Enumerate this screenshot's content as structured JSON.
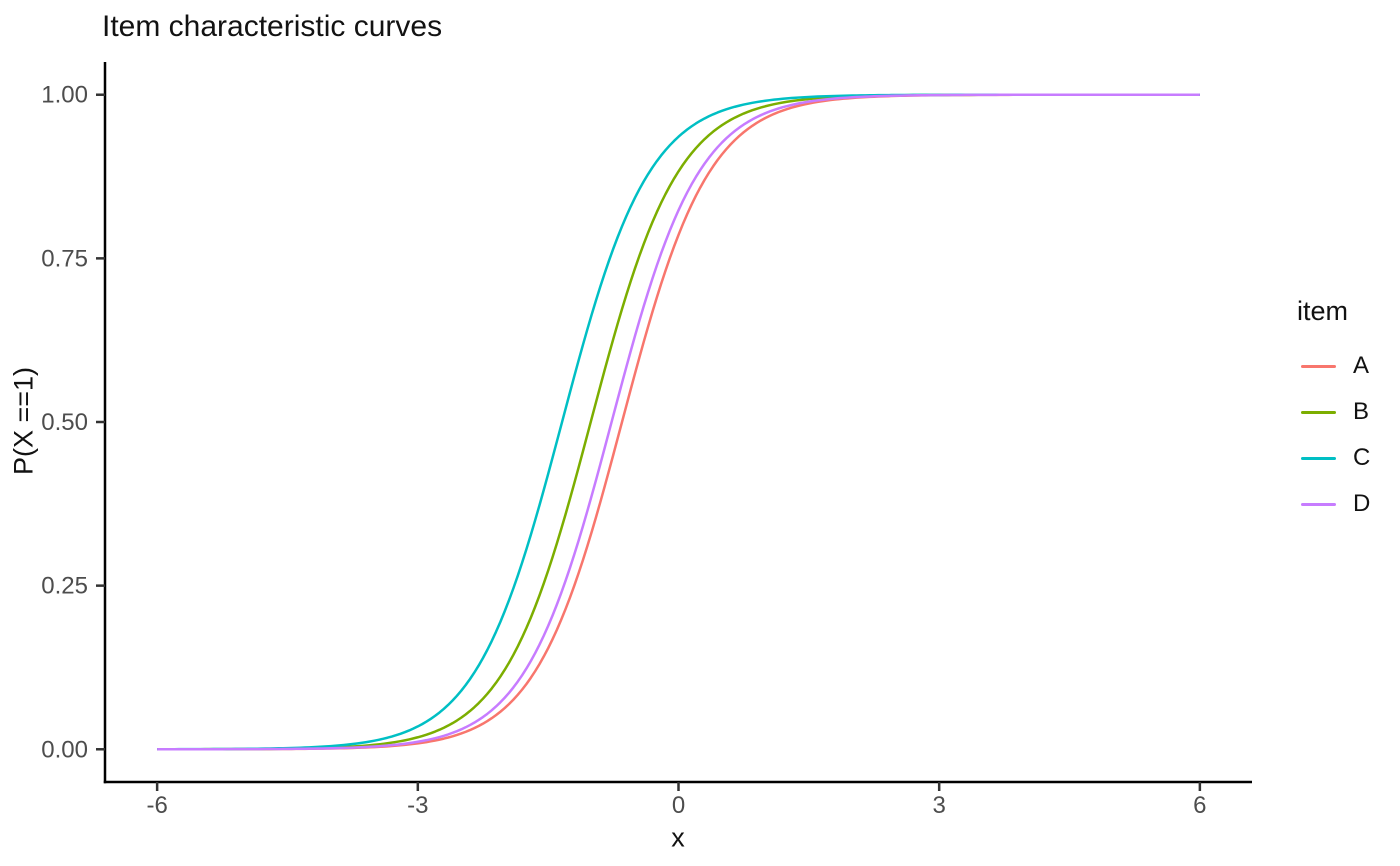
{
  "title": "Item characteristic curves",
  "legend": {
    "title": "item",
    "items": [
      {
        "label": "A",
        "color": "#F8766D"
      },
      {
        "label": "B",
        "color": "#7CAE00"
      },
      {
        "label": "C",
        "color": "#00BFC4"
      },
      {
        "label": "D",
        "color": "#C77CFF"
      }
    ]
  },
  "colors": {
    "axis_line": "#000000",
    "tick_mark": "#333333",
    "tick_label": "#4d4d4d",
    "background": "#ffffff"
  },
  "chart_data": {
    "type": "line",
    "title": "Item characteristic curves",
    "xlabel": "x",
    "ylabel": "P(X ==1)",
    "x_range": [
      -6,
      6
    ],
    "xlim": [
      -6.6,
      6.6
    ],
    "ylim": [
      -0.05,
      1.05
    ],
    "x_ticks": [
      -6,
      -3,
      0,
      3,
      6
    ],
    "x_tick_labels": [
      "-6",
      "-3",
      "0",
      "3",
      "6"
    ],
    "y_ticks": [
      0,
      0.25,
      0.5,
      0.75,
      1
    ],
    "y_tick_labels": [
      "0.00",
      "0.25",
      "0.50",
      "0.75",
      "1.00"
    ],
    "grid": false,
    "legend_position": "right",
    "model": "2PL logistic item characteristic curve: P(X==1) = 1 / (1 + exp(-a*(x-b)))",
    "series": [
      {
        "name": "A",
        "color": "#F8766D",
        "a": 2.0,
        "b": -0.65,
        "x_samples": [
          -6,
          -5,
          -4,
          -3,
          -2,
          -1,
          0,
          1,
          2,
          3,
          4,
          5,
          6
        ],
        "p_samples": [
          0.0,
          0.0002,
          0.0012,
          0.009,
          0.063,
          0.3318,
          0.7858,
          0.9644,
          0.995,
          0.9993,
          0.9999,
          1.0,
          1.0
        ]
      },
      {
        "name": "B",
        "color": "#7CAE00",
        "a": 2.0,
        "b": -1.01,
        "x_samples": [
          -6,
          -5,
          -4,
          -3,
          -2,
          -1,
          0,
          1,
          2,
          3,
          4,
          5,
          6
        ],
        "p_samples": [
          0.0,
          0.0003,
          0.0025,
          0.0183,
          0.1213,
          0.505,
          0.8829,
          0.9824,
          0.9976,
          0.9997,
          1.0,
          1.0,
          1.0
        ]
      },
      {
        "name": "C",
        "color": "#00BFC4",
        "a": 2.0,
        "b": -1.34,
        "x_samples": [
          -6,
          -5,
          -4,
          -3,
          -2,
          -1,
          0,
          1,
          2,
          3,
          4,
          5,
          6
        ],
        "p_samples": [
          0.0001,
          0.0007,
          0.0049,
          0.0349,
          0.2108,
          0.6637,
          0.9359,
          0.9908,
          0.9987,
          0.9998,
          1.0,
          1.0,
          1.0
        ]
      },
      {
        "name": "D",
        "color": "#C77CFF",
        "a": 2.0,
        "b": -0.77,
        "x_samples": [
          -6,
          -5,
          -4,
          -3,
          -2,
          -1,
          0,
          1,
          2,
          3,
          4,
          5,
          6
        ],
        "p_samples": [
          0.0,
          0.0002,
          0.0016,
          0.0114,
          0.0787,
          0.387,
          0.8234,
          0.9718,
          0.9961,
          0.999,
          0.9999,
          1.0,
          1.0
        ]
      }
    ]
  }
}
